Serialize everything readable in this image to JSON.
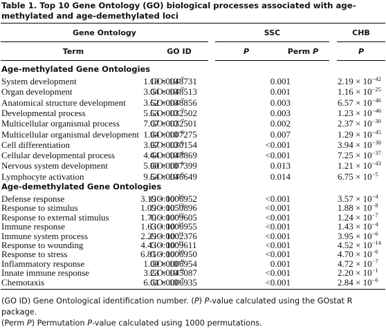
{
  "caption": {
    "label": "Table 1.",
    "text": "Top 10 Gene Ontology (GO) biological processes associated with age-methylated and age-demethylated loci"
  },
  "header": {
    "group_gene_ontology": "Gene Ontology",
    "group_ssc": "SSC",
    "group_chb": "CHB",
    "col_term": "Term",
    "col_go_id": "GO ID",
    "col_p_ssc": "P",
    "col_perm_p_word": "Perm",
    "col_perm_p_sym": "P",
    "col_p_chb": "P"
  },
  "sections": [
    {
      "title": "Age-methylated Gene Ontologies",
      "rows": [
        {
          "term": "System development",
          "go_id": "GO:0048731",
          "ssc_p_mant": "1.19",
          "ssc_p_exp": "−7",
          "perm_p": "0.001",
          "chb_p_mant": "2.19",
          "chb_p_exp": "−42"
        },
        {
          "term": "Organ development",
          "go_id": "GO:0048513",
          "ssc_p_mant": "3.04",
          "ssc_p_exp": "−7",
          "perm_p": "0.001",
          "chb_p_mant": "1.16",
          "chb_p_exp": "−25"
        },
        {
          "term": "Anatomical structure development",
          "go_id": "GO:0048856",
          "ssc_p_mant": "3.52",
          "ssc_p_exp": "−7",
          "perm_p": "0.003",
          "chb_p_mant": "6.57",
          "chb_p_exp": "−46"
        },
        {
          "term": "Developmental process",
          "go_id": "GO:0032502",
          "ssc_p_mant": "5.53",
          "ssc_p_exp": "−7",
          "perm_p": "0.003",
          "chb_p_mant": "1.23",
          "chb_p_exp": "−46"
        },
        {
          "term": "Multicellular organismal process",
          "go_id": "GO:0032501",
          "ssc_p_mant": "7.07",
          "ssc_p_exp": "−7",
          "perm_p": "0.002",
          "chb_p_mant": "2.37",
          "chb_p_exp": "−30"
        },
        {
          "term": "Multicellular organismal development",
          "go_id": "GO:0007275",
          "ssc_p_mant": "1.94",
          "ssc_p_exp": "−6",
          "perm_p": "0.007",
          "chb_p_mant": "1.29",
          "chb_p_exp": "−45"
        },
        {
          "term": "Cell differentiation",
          "go_id": "GO:0030154",
          "ssc_p_mant": "3.97",
          "ssc_p_exp": "−6",
          "perm_p": "<0.001",
          "chb_p_mant": "3.94",
          "chb_p_exp": "−38"
        },
        {
          "term": "Cellular developmental process",
          "go_id": "GO:0048869",
          "ssc_p_mant": "4.44",
          "ssc_p_exp": "−6",
          "perm_p": "<0.001",
          "chb_p_mant": "7.25",
          "chb_p_exp": "−37"
        },
        {
          "term": "Nervous system development",
          "go_id": "GO:0007399",
          "ssc_p_mant": "5.90",
          "ssc_p_exp": "−6",
          "perm_p": "0.013",
          "chb_p_mant": "1.21",
          "chb_p_exp": "−43"
        },
        {
          "term": "Lymphocyte activation",
          "go_id": "GO:0046649",
          "ssc_p_mant": "9.54",
          "ssc_p_exp": "−6",
          "perm_p": "0.014",
          "chb_p_mant": "6.75",
          "chb_p_exp": "−5"
        }
      ]
    },
    {
      "title": "Age-demethylated Gene Ontologies",
      "rows": [
        {
          "term": "Defense response",
          "go_id": "GO:0006952",
          "ssc_p_mant": "3.19",
          "ssc_p_exp": "−16",
          "perm_p": "<0.001",
          "chb_p_mant": "3.57",
          "chb_p_exp": "−4"
        },
        {
          "term": "Response to stimulus",
          "go_id": "GO:0050896",
          "ssc_p_mant": "1.09",
          "ssc_p_exp": "−13",
          "perm_p": "<0.001",
          "chb_p_mant": "1.88",
          "chb_p_exp": "−8"
        },
        {
          "term": "Response to external stimulus",
          "go_id": "GO:0009605",
          "ssc_p_mant": "1.70",
          "ssc_p_exp": "−12",
          "perm_p": "<0.001",
          "chb_p_mant": "1.24",
          "chb_p_exp": "−7"
        },
        {
          "term": "Immune response",
          "go_id": "GO:0006955",
          "ssc_p_mant": "1.63",
          "ssc_p_exp": "−11",
          "perm_p": "<0.001",
          "chb_p_mant": "1.43",
          "chb_p_exp": "−4"
        },
        {
          "term": "Immune system process",
          "go_id": "GO:0002376",
          "ssc_p_mant": "2.29",
          "ssc_p_exp": "−11",
          "perm_p": "<0.001",
          "chb_p_mant": "3.95",
          "chb_p_exp": "−6"
        },
        {
          "term": "Response to wounding",
          "go_id": "GO:0009611",
          "ssc_p_mant": "4.43",
          "ssc_p_exp": "−11",
          "perm_p": "<0.001",
          "chb_p_mant": "4.52",
          "chb_p_exp": "−14"
        },
        {
          "term": "Response to stress",
          "go_id": "GO:0006950",
          "ssc_p_mant": "6.81",
          "ssc_p_exp": "−10",
          "perm_p": "<0.001",
          "chb_p_mant": "4.70",
          "chb_p_exp": "−6"
        },
        {
          "term": "Inflammatory response",
          "go_id": "GO:0006954",
          "ssc_p_mant": "1.09",
          "ssc_p_exp": "−9",
          "perm_p": "0.001",
          "chb_p_mant": "4.72",
          "chb_p_exp": "−7"
        },
        {
          "term": "Innate immune response",
          "go_id": "GO:0045087",
          "ssc_p_mant": "3.23",
          "ssc_p_exp": "−9",
          "perm_p": "<0.001",
          "chb_p_mant": "2.20",
          "chb_p_exp": "−1"
        },
        {
          "term": "Chemotaxis",
          "go_id": "GO:0006935",
          "ssc_p_mant": "6.01",
          "ssc_p_exp": "−7",
          "perm_p": "<0.001",
          "chb_p_mant": "2.84",
          "chb_p_exp": "−6"
        }
      ]
    }
  ],
  "sci_times": "× 10",
  "footnote": [
    {
      "abbr": "GO ID",
      "text": "Gene Ontological identification number."
    },
    {
      "abbr": "P",
      "text_italic": "P",
      "text": "-value calculated using the GOstat R package."
    },
    {
      "abbr_word": "Perm",
      "abbr_sym": "P",
      "text": "Permutation",
      "text_italic": "P",
      "text_end": "-value calculated using 1000 permutations."
    }
  ]
}
